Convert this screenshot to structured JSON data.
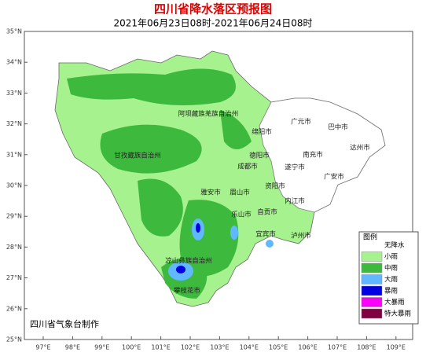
{
  "header": {
    "title": "四川省降水落区预报图",
    "subtitle": "2021年06月23日08时-2021年06月24日08时"
  },
  "axes": {
    "lat_labels": [
      "35°N",
      "34°N",
      "33°N",
      "32°N",
      "31°N",
      "30°N",
      "29°N",
      "28°N",
      "27°N",
      "26°N",
      "25°N"
    ],
    "lon_labels": [
      "97°E",
      "98°E",
      "99°E",
      "100°E",
      "101°E",
      "102°E",
      "103°E",
      "104°E",
      "105°E",
      "106°E",
      "107°E",
      "108°E",
      "109°E"
    ]
  },
  "regions": [
    "阿坝藏族羌族自治州",
    "甘孜藏族自治州",
    "绵阳市",
    "广元市",
    "巴中市",
    "达州市",
    "南充市",
    "德阳市",
    "遂宁市",
    "成都市",
    "广安市",
    "资阳市",
    "雅安市",
    "眉山市",
    "内江市",
    "乐山市",
    "自贡市",
    "宜宾市",
    "泸州市",
    "凉山彝族自治州",
    "攀枝花市"
  ],
  "legend": {
    "title": "图例",
    "items": [
      {
        "label": "无降水",
        "color": "#ffffff"
      },
      {
        "label": "小雨",
        "color": "#a6f28f"
      },
      {
        "label": "中雨",
        "color": "#3dba3d"
      },
      {
        "label": "大雨",
        "color": "#61b8ff"
      },
      {
        "label": "暴雨",
        "color": "#0000e1"
      },
      {
        "label": "大暴雨",
        "color": "#fa00fa"
      },
      {
        "label": "特大暴雨",
        "color": "#800040"
      }
    ]
  },
  "credit": "四川省气象台制作"
}
